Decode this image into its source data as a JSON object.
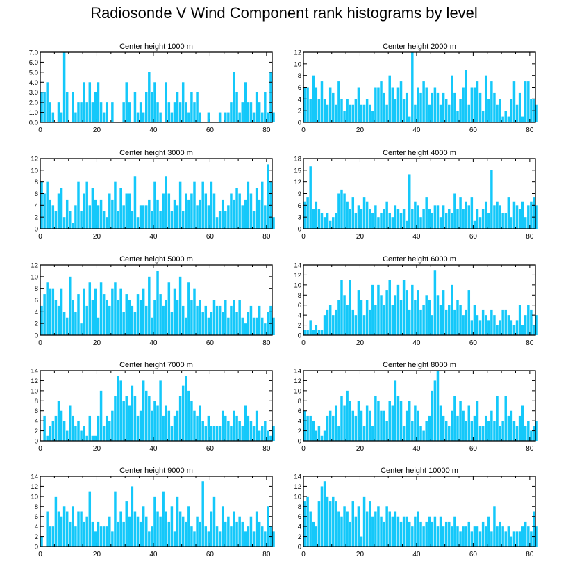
{
  "title": "Radiosonde V Wind Component rank histograms by level",
  "colors": {
    "bar": "#14c8fa",
    "axis": "#000000"
  },
  "chart_data": [
    {
      "type": "bar",
      "title": "Center height 1000 m",
      "xlim": [
        0,
        82
      ],
      "ylim": [
        0,
        7
      ],
      "xticks": [
        0,
        20,
        40,
        60,
        80
      ],
      "yticks": [
        "0.0",
        "1.0",
        "2.0",
        "3.0",
        "4.0",
        "5.0",
        "6.0",
        "7.0"
      ],
      "values": [
        3,
        3,
        4,
        2,
        1,
        0,
        2,
        1,
        7,
        3,
        0,
        3,
        1,
        2,
        2,
        4,
        2,
        4,
        2,
        3,
        4,
        2,
        1,
        2,
        0,
        2,
        0,
        0,
        0,
        2,
        4,
        2,
        0,
        3,
        1,
        2,
        1,
        3,
        5,
        3,
        4,
        2,
        1,
        0,
        4,
        2,
        1,
        2,
        3,
        2,
        4,
        2,
        1,
        3,
        2,
        3,
        1,
        0,
        0,
        1,
        0,
        0,
        0,
        1,
        0,
        1,
        1,
        2,
        5,
        3,
        1,
        2,
        4,
        2,
        2,
        1,
        3,
        2,
        1,
        3,
        1,
        5,
        1
      ]
    },
    {
      "type": "bar",
      "title": "Center height 2000 m",
      "xlim": [
        0,
        82
      ],
      "ylim": [
        0,
        12
      ],
      "xticks": [
        0,
        20,
        40,
        60,
        80
      ],
      "yticks": [
        "0",
        "2",
        "4",
        "6",
        "8",
        "10",
        "12"
      ],
      "values": [
        6,
        6,
        4,
        8,
        6,
        4,
        7,
        4,
        3,
        6,
        5,
        3,
        7,
        4,
        2,
        4,
        3,
        3,
        4,
        6,
        3,
        3,
        4,
        3,
        2,
        6,
        6,
        7,
        5,
        3,
        8,
        6,
        4,
        6,
        7,
        4,
        5,
        1,
        12,
        3,
        6,
        5,
        7,
        6,
        3,
        5,
        6,
        5,
        3,
        5,
        4,
        3,
        8,
        5,
        2,
        4,
        6,
        9,
        3,
        6,
        6,
        7,
        5,
        2,
        8,
        4,
        7,
        5,
        3,
        4,
        1,
        2,
        1,
        4,
        7,
        3,
        5,
        1,
        7,
        7,
        4,
        4,
        3
      ]
    },
    {
      "type": "bar",
      "title": "Center height 3000 m",
      "xlim": [
        0,
        82
      ],
      "ylim": [
        0,
        12
      ],
      "xticks": [
        0,
        20,
        40,
        60,
        80
      ],
      "yticks": [
        "0",
        "2",
        "4",
        "6",
        "8",
        "10",
        "12"
      ],
      "values": [
        8,
        6,
        8,
        5,
        4,
        3,
        6,
        7,
        2,
        5,
        3,
        1,
        4,
        8,
        3,
        6,
        8,
        4,
        7,
        5,
        4,
        5,
        3,
        2,
        6,
        5,
        8,
        3,
        7,
        4,
        6,
        6,
        3,
        9,
        2,
        4,
        4,
        4,
        5,
        3,
        8,
        5,
        3,
        6,
        9,
        6,
        3,
        5,
        4,
        8,
        3,
        6,
        5,
        6,
        8,
        4,
        5,
        8,
        6,
        4,
        8,
        6,
        2,
        3,
        5,
        3,
        4,
        6,
        5,
        7,
        6,
        4,
        5,
        8,
        6,
        3,
        7,
        5,
        8,
        4,
        11,
        8,
        2
      ]
    },
    {
      "type": "bar",
      "title": "Center height 4000 m",
      "xlim": [
        0,
        82
      ],
      "ylim": [
        0,
        18
      ],
      "xticks": [
        0,
        20,
        40,
        60,
        80
      ],
      "yticks": [
        "0",
        "3",
        "6",
        "9",
        "12",
        "15",
        "18"
      ],
      "values": [
        7,
        8,
        16,
        5,
        7,
        5,
        4,
        3,
        4,
        2,
        3,
        4,
        9,
        10,
        9,
        7,
        5,
        8,
        4,
        6,
        5,
        8,
        7,
        5,
        4,
        6,
        3,
        4,
        5,
        7,
        4,
        3,
        6,
        5,
        4,
        5,
        2,
        14,
        5,
        7,
        6,
        3,
        5,
        8,
        5,
        4,
        6,
        6,
        3,
        6,
        4,
        5,
        4,
        9,
        5,
        8,
        5,
        7,
        6,
        8,
        2,
        5,
        3,
        5,
        7,
        4,
        15,
        6,
        7,
        6,
        4,
        4,
        8,
        3,
        7,
        6,
        5,
        7,
        3,
        6,
        7,
        8,
        6
      ]
    },
    {
      "type": "bar",
      "title": "Center height 5000 m",
      "xlim": [
        0,
        82
      ],
      "ylim": [
        0,
        12
      ],
      "xticks": [
        0,
        20,
        40,
        60,
        80
      ],
      "yticks": [
        "0",
        "2",
        "4",
        "6",
        "8",
        "10",
        "12"
      ],
      "values": [
        5,
        7,
        9,
        8,
        8,
        6,
        5,
        8,
        4,
        3,
        10,
        6,
        4,
        7,
        2,
        8,
        5,
        9,
        6,
        8,
        3,
        9,
        7,
        6,
        5,
        8,
        9,
        6,
        8,
        4,
        7,
        6,
        5,
        4,
        7,
        6,
        8,
        5,
        10,
        3,
        6,
        11,
        7,
        5,
        6,
        9,
        4,
        8,
        6,
        10,
        5,
        3,
        9,
        6,
        8,
        5,
        6,
        4,
        5,
        3,
        4,
        6,
        5,
        5,
        4,
        6,
        3,
        5,
        6,
        4,
        6,
        3,
        2,
        4,
        5,
        3,
        3,
        5,
        3,
        2,
        4,
        5,
        3
      ]
    },
    {
      "type": "bar",
      "title": "Center height 6000 m",
      "xlim": [
        0,
        82
      ],
      "ylim": [
        0,
        14
      ],
      "xticks": [
        0,
        20,
        40,
        60,
        80
      ],
      "yticks": [
        "0",
        "2",
        "4",
        "6",
        "8",
        "10",
        "12",
        "14"
      ],
      "values": [
        1,
        1,
        3,
        1,
        2,
        1,
        1,
        4,
        5,
        6,
        4,
        5,
        7,
        11,
        8,
        6,
        11,
        5,
        4,
        9,
        7,
        4,
        7,
        5,
        10,
        6,
        10,
        8,
        6,
        9,
        11,
        6,
        8,
        10,
        7,
        11,
        9,
        5,
        10,
        7,
        9,
        5,
        6,
        8,
        7,
        4,
        13,
        8,
        6,
        9,
        5,
        6,
        10,
        5,
        7,
        6,
        4,
        5,
        9,
        3,
        6,
        4,
        3,
        5,
        4,
        3,
        5,
        4,
        2,
        3,
        5,
        5,
        4,
        3,
        2,
        3,
        6,
        2,
        4,
        6,
        5,
        2,
        4
      ]
    },
    {
      "type": "bar",
      "title": "Center height 7000 m",
      "xlim": [
        0,
        82
      ],
      "ylim": [
        0,
        14
      ],
      "xticks": [
        0,
        20,
        40,
        60,
        80
      ],
      "yticks": [
        "0",
        "2",
        "4",
        "6",
        "8",
        "10",
        "12",
        "14"
      ],
      "values": [
        0,
        5,
        1,
        3,
        4,
        5,
        8,
        6,
        4,
        2,
        7,
        5,
        3,
        4,
        2,
        3,
        1,
        5,
        1,
        1,
        5,
        10,
        3,
        5,
        4,
        6,
        9,
        13,
        12,
        8,
        9,
        7,
        11,
        9,
        5,
        6,
        12,
        10,
        9,
        6,
        8,
        7,
        12,
        5,
        7,
        6,
        3,
        5,
        6,
        9,
        11,
        13,
        10,
        8,
        6,
        5,
        7,
        4,
        3,
        5,
        3,
        3,
        3,
        3,
        6,
        5,
        4,
        3,
        6,
        5,
        4,
        3,
        7,
        5,
        4,
        3,
        6,
        2,
        3,
        4,
        2,
        1,
        3
      ]
    },
    {
      "type": "bar",
      "title": "Center height 8000 m",
      "xlim": [
        0,
        82
      ],
      "ylim": [
        0,
        14
      ],
      "xticks": [
        0,
        20,
        40,
        60,
        80
      ],
      "yticks": [
        "0",
        "2",
        "4",
        "6",
        "8",
        "10",
        "12",
        "14"
      ],
      "values": [
        6,
        5,
        5,
        4,
        2,
        3,
        1,
        2,
        5,
        6,
        5,
        7,
        3,
        9,
        7,
        10,
        8,
        6,
        5,
        8,
        6,
        3,
        7,
        6,
        3,
        9,
        8,
        6,
        6,
        4,
        8,
        7,
        12,
        9,
        8,
        3,
        6,
        8,
        4,
        7,
        6,
        3,
        2,
        4,
        5,
        10,
        12,
        14,
        7,
        5,
        4,
        3,
        6,
        9,
        5,
        8,
        6,
        4,
        7,
        4,
        5,
        8,
        3,
        3,
        5,
        4,
        6,
        4,
        9,
        3,
        4,
        9,
        5,
        6,
        4,
        3,
        5,
        7,
        3,
        4,
        2,
        3,
        4
      ]
    },
    {
      "type": "bar",
      "title": "Center height 9000 m",
      "xlim": [
        0,
        82
      ],
      "ylim": [
        0,
        14
      ],
      "xticks": [
        0,
        20,
        40,
        60,
        80
      ],
      "yticks": [
        "0",
        "2",
        "4",
        "6",
        "8",
        "10",
        "12",
        "14"
      ],
      "values": [
        2,
        0,
        7,
        4,
        4,
        10,
        7,
        6,
        8,
        7,
        5,
        8,
        4,
        7,
        7,
        5,
        6,
        11,
        5,
        3,
        5,
        4,
        4,
        4,
        6,
        3,
        11,
        5,
        7,
        5,
        9,
        6,
        12,
        7,
        6,
        5,
        8,
        6,
        3,
        4,
        10,
        7,
        6,
        11,
        7,
        5,
        8,
        3,
        10,
        7,
        6,
        5,
        8,
        4,
        3,
        6,
        5,
        13,
        4,
        3,
        7,
        10,
        4,
        3,
        8,
        5,
        6,
        4,
        7,
        5,
        6,
        5,
        3,
        4,
        6,
        3,
        7,
        5,
        4,
        3,
        8,
        4,
        3
      ]
    },
    {
      "type": "bar",
      "title": "Center height 10000 m",
      "xlim": [
        0,
        82
      ],
      "ylim": [
        0,
        14
      ],
      "xticks": [
        0,
        20,
        40,
        60,
        80
      ],
      "yticks": [
        "0",
        "2",
        "4",
        "6",
        "8",
        "10",
        "12",
        "14"
      ],
      "values": [
        9,
        10,
        7,
        5,
        4,
        9,
        12,
        13,
        10,
        9,
        10,
        9,
        7,
        6,
        8,
        7,
        5,
        9,
        6,
        8,
        2,
        10,
        7,
        9,
        6,
        7,
        8,
        6,
        5,
        8,
        7,
        6,
        7,
        6,
        5,
        6,
        6,
        5,
        4,
        6,
        7,
        5,
        4,
        5,
        6,
        5,
        6,
        4,
        6,
        4,
        5,
        5,
        4,
        6,
        4,
        3,
        4,
        4,
        5,
        3,
        4,
        4,
        3,
        5,
        4,
        6,
        3,
        8,
        4,
        5,
        4,
        3,
        4,
        2,
        3,
        3,
        3,
        4,
        5,
        4,
        3,
        7,
        4
      ]
    }
  ]
}
